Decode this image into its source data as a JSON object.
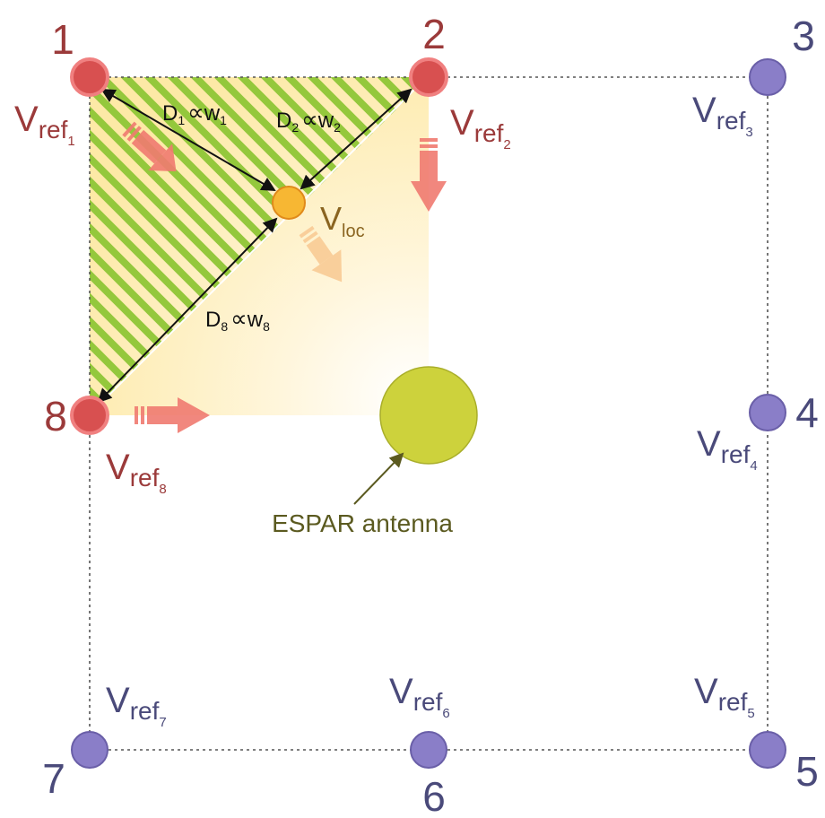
{
  "colors": {
    "active_node": "#d85050",
    "active_node_ring": "#f08080",
    "active_text": "#9b3a3a",
    "inactive_node": "#8a7ec8",
    "inactive_node_ring": "#6a5fa8",
    "inactive_text": "#4a4a7a",
    "loc_node": "#f7b733",
    "loc_text": "#8a6420",
    "antenna": "#cdd23c",
    "antenna_text": "#5b5a20",
    "stripes": "#94c83c",
    "arrow_red": "#f07a70",
    "arrow_orange": "#f8c890"
  },
  "nodes": [
    {
      "id": "1",
      "label": "V",
      "sub": "ref",
      "subsub": "1",
      "active": true
    },
    {
      "id": "2",
      "label": "V",
      "sub": "ref",
      "subsub": "2",
      "active": true
    },
    {
      "id": "3",
      "label": "V",
      "sub": "ref",
      "subsub": "3",
      "active": false
    },
    {
      "id": "4",
      "label": "V",
      "sub": "ref",
      "subsub": "4",
      "active": false
    },
    {
      "id": "5",
      "label": "V",
      "sub": "ref",
      "subsub": "5",
      "active": false
    },
    {
      "id": "6",
      "label": "V",
      "sub": "ref",
      "subsub": "6",
      "active": false
    },
    {
      "id": "7",
      "label": "V",
      "sub": "ref",
      "subsub": "7",
      "active": false
    },
    {
      "id": "8",
      "label": "V",
      "sub": "ref",
      "subsub": "8",
      "active": true
    }
  ],
  "loc": {
    "label": "V",
    "sub": "loc"
  },
  "distances": [
    {
      "d": "D",
      "dsub": "1",
      "sym": "∝",
      "w": "w",
      "wsub": "1"
    },
    {
      "d": "D",
      "dsub": "2",
      "sym": "∝",
      "w": "w",
      "wsub": "2"
    },
    {
      "d": "D",
      "dsub": "8",
      "sym": "∝",
      "w": "w",
      "wsub": "8"
    }
  ],
  "antenna_label": "ESPAR antenna"
}
